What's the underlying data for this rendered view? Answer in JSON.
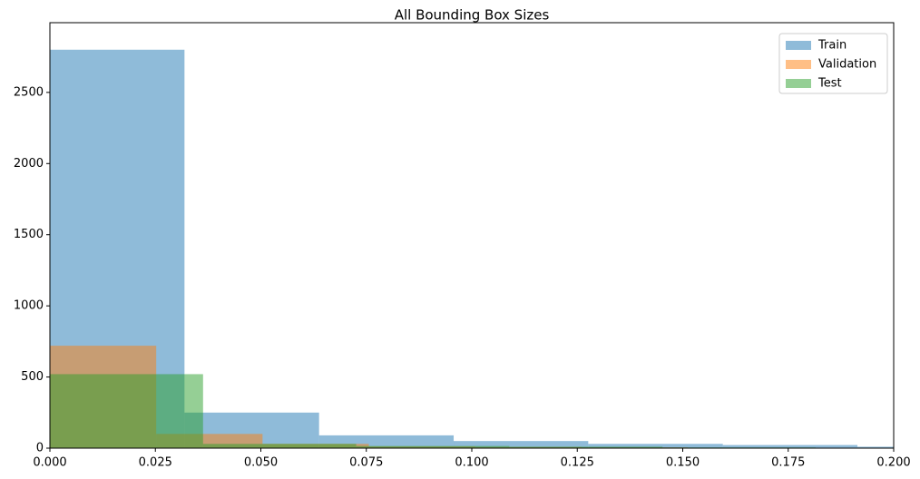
{
  "chart_data": {
    "type": "histogram",
    "title": "All Bounding Box Sizes",
    "series": [
      {
        "name": "Train",
        "color": "#1f77b4",
        "bins": [
          0,
          0.0319,
          0.0638,
          0.0957,
          0.1276,
          0.1595,
          0.1914,
          0.2233
        ],
        "values": [
          2800,
          250,
          90,
          50,
          30,
          22,
          10
        ]
      },
      {
        "name": "Validation",
        "color": "#ff7f0e",
        "bins": [
          0,
          0.0252,
          0.0504,
          0.0756,
          0.1008,
          0.126,
          0.1512,
          0.1764,
          0.2016
        ],
        "values": [
          720,
          100,
          30,
          12,
          8,
          5,
          3,
          2
        ]
      },
      {
        "name": "Test",
        "color": "#2ca02c",
        "bins": [
          0,
          0.0363,
          0.0726,
          0.1089,
          0.1452,
          0.1815,
          0.2178
        ],
        "values": [
          520,
          30,
          15,
          10,
          5,
          2
        ]
      }
    ],
    "alpha": 0.5,
    "xlim": [
      0,
      0.2
    ],
    "xticks": [
      {
        "value": 0,
        "label": "0.000"
      },
      {
        "value": 0.025,
        "label": "0.025"
      },
      {
        "value": 0.05,
        "label": "0.050"
      },
      {
        "value": 0.075,
        "label": "0.075"
      },
      {
        "value": 0.1,
        "label": "0.100"
      },
      {
        "value": 0.125,
        "label": "0.125"
      },
      {
        "value": 0.15,
        "label": "0.150"
      },
      {
        "value": 0.175,
        "label": "0.175"
      },
      {
        "value": 0.2,
        "label": "0.200"
      }
    ],
    "ylim": [
      0,
      2990
    ],
    "yticks": [
      0,
      500,
      1000,
      1500,
      2000,
      2500
    ],
    "grid": false,
    "legend": "upper right"
  }
}
